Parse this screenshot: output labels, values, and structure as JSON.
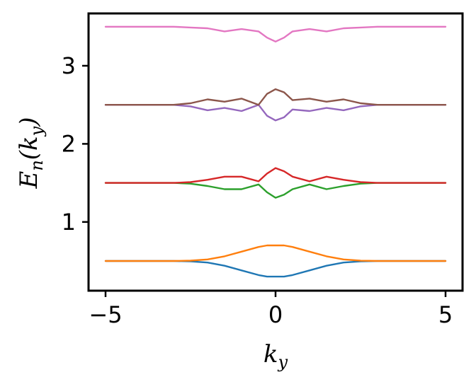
{
  "chart_data": {
    "type": "line",
    "title": "",
    "xlabel": "k_y",
    "ylabel": "E_n(k_y)",
    "xlabel_main": "k",
    "xlabel_sub": "y",
    "ylabel_main": "E",
    "ylabel_sub1": "n",
    "ylabel_mid": "(k",
    "ylabel_sub2": "y",
    "ylabel_end": ")",
    "xlim": [
      -5.5,
      5.5
    ],
    "ylim": [
      0.12,
      3.67
    ],
    "xticks": [
      -5,
      0,
      5
    ],
    "xtick_labels": [
      "−5",
      "0",
      "5"
    ],
    "yticks": [
      1,
      2,
      3
    ],
    "ytick_labels": [
      "1",
      "2",
      "3"
    ],
    "grid": false,
    "legend": "none",
    "x": [
      -5.0,
      -3.0,
      -2.5,
      -2.0,
      -1.5,
      -1.0,
      -0.5,
      -0.25,
      0.0,
      0.25,
      0.5,
      1.0,
      1.5,
      2.0,
      2.5,
      3.0,
      5.0
    ],
    "series": [
      {
        "color": "#1f77b4",
        "values": [
          0.5,
          0.5,
          0.495,
          0.48,
          0.44,
          0.38,
          0.32,
          0.3,
          0.3,
          0.3,
          0.32,
          0.38,
          0.44,
          0.48,
          0.495,
          0.5,
          0.5
        ]
      },
      {
        "color": "#ff7f0e",
        "values": [
          0.5,
          0.5,
          0.505,
          0.52,
          0.56,
          0.62,
          0.68,
          0.7,
          0.7,
          0.7,
          0.68,
          0.62,
          0.56,
          0.52,
          0.505,
          0.5,
          0.5
        ]
      },
      {
        "color": "#2ca02c",
        "values": [
          1.5,
          1.5,
          1.49,
          1.46,
          1.42,
          1.42,
          1.48,
          1.38,
          1.31,
          1.35,
          1.42,
          1.48,
          1.42,
          1.46,
          1.49,
          1.5,
          1.5
        ]
      },
      {
        "color": "#d62728",
        "values": [
          1.5,
          1.5,
          1.51,
          1.54,
          1.58,
          1.58,
          1.52,
          1.62,
          1.69,
          1.65,
          1.58,
          1.52,
          1.58,
          1.54,
          1.51,
          1.5,
          1.5
        ]
      },
      {
        "color": "#9467bd",
        "values": [
          2.5,
          2.5,
          2.48,
          2.43,
          2.46,
          2.42,
          2.5,
          2.36,
          2.3,
          2.34,
          2.44,
          2.42,
          2.46,
          2.43,
          2.48,
          2.5,
          2.5
        ]
      },
      {
        "color": "#8c564b",
        "values": [
          2.5,
          2.5,
          2.52,
          2.57,
          2.54,
          2.58,
          2.5,
          2.64,
          2.7,
          2.66,
          2.56,
          2.58,
          2.54,
          2.57,
          2.52,
          2.5,
          2.5
        ]
      },
      {
        "color": "#e377c2",
        "values": [
          3.5,
          3.5,
          3.49,
          3.48,
          3.44,
          3.47,
          3.44,
          3.36,
          3.31,
          3.36,
          3.44,
          3.47,
          3.44,
          3.48,
          3.49,
          3.5,
          3.5
        ]
      }
    ]
  }
}
